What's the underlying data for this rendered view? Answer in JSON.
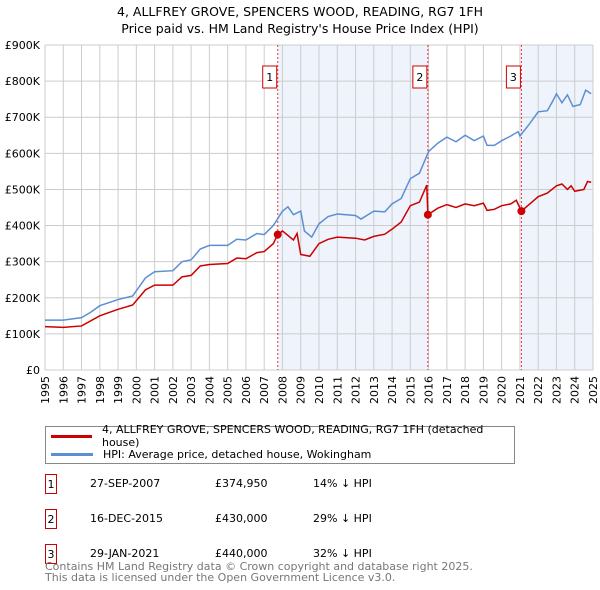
{
  "chart_data": {
    "type": "line",
    "title": "4, ALLFREY GROVE, SPENCERS WOOD, READING, RG7 1FH",
    "subtitle": "Price paid vs. HM Land Registry's House Price Index (HPI)",
    "xlim": [
      1995,
      2025
    ],
    "ylim": [
      0,
      900000
    ],
    "yticks": [
      0,
      100000,
      200000,
      300000,
      400000,
      500000,
      600000,
      700000,
      800000,
      900000
    ],
    "ytick_labels": [
      "£0",
      "£100K",
      "£200K",
      "£300K",
      "£400K",
      "£500K",
      "£600K",
      "£700K",
      "£800K",
      "£900K"
    ],
    "xticks": [
      1995,
      1996,
      1997,
      1998,
      1999,
      2000,
      2001,
      2002,
      2003,
      2004,
      2005,
      2006,
      2007,
      2008,
      2009,
      2010,
      2011,
      2012,
      2013,
      2014,
      2015,
      2016,
      2017,
      2018,
      2019,
      2020,
      2021,
      2022,
      2023,
      2024,
      2025
    ],
    "grid": true,
    "series": [
      {
        "name": "4, ALLFREY GROVE, SPENCERS WOOD, READING, RG7 1FH (detached house)",
        "color": "#cc0000",
        "x": [
          1995,
          1996,
          1997,
          1998,
          1999,
          1999.8,
          2000.5,
          2001,
          2002,
          2002.5,
          2003,
          2003.5,
          2004,
          2005,
          2005.5,
          2006,
          2006.6,
          2007,
          2007.5,
          2007.74,
          2008,
          2008.6,
          2008.8,
          2009,
          2009.5,
          2010,
          2010.5,
          2011,
          2012,
          2012.5,
          2013,
          2013.6,
          2014,
          2014.5,
          2015,
          2015.5,
          2015.9,
          2015.96,
          2016.5,
          2017,
          2017.5,
          2018,
          2018.5,
          2019,
          2019.2,
          2019.6,
          2020,
          2020.5,
          2020.8,
          2021.08,
          2021.5,
          2022,
          2022.5,
          2023,
          2023.3,
          2023.6,
          2023.8,
          2024,
          2024.5,
          2024.7,
          2024.9
        ],
        "y": [
          120000,
          118000,
          122000,
          150000,
          168000,
          180000,
          222000,
          235000,
          235000,
          258000,
          262000,
          288000,
          292000,
          295000,
          310000,
          308000,
          325000,
          328000,
          350000,
          374950,
          385000,
          360000,
          378000,
          320000,
          315000,
          350000,
          362000,
          368000,
          365000,
          360000,
          370000,
          376000,
          390000,
          410000,
          455000,
          465000,
          512000,
          430000,
          448000,
          458000,
          450000,
          460000,
          455000,
          462000,
          442000,
          445000,
          455000,
          460000,
          470000,
          440000,
          458000,
          480000,
          490000,
          510000,
          515000,
          500000,
          510000,
          495000,
          500000,
          522000,
          520000
        ]
      },
      {
        "name": "HPI: Average price, detached house, Wokingham",
        "color": "#5b8fd4",
        "x": [
          1995,
          1996,
          1997,
          1997.5,
          1998,
          1999,
          1999.8,
          2000.5,
          2001,
          2002,
          2002.5,
          2003,
          2003.5,
          2004,
          2005,
          2005.5,
          2006,
          2006.6,
          2007,
          2007.5,
          2008,
          2008.3,
          2008.6,
          2009,
          2009.2,
          2009.6,
          2010,
          2010.5,
          2011,
          2012,
          2012.3,
          2013,
          2013.6,
          2014,
          2014.5,
          2015,
          2015.5,
          2016,
          2016.5,
          2017,
          2017.5,
          2018,
          2018.5,
          2019,
          2019.2,
          2019.6,
          2020,
          2020.5,
          2020.9,
          2021,
          2021.5,
          2022,
          2022.5,
          2022.8,
          2023,
          2023.3,
          2023.6,
          2023.9,
          2024.3,
          2024.6,
          2024.9
        ],
        "y": [
          138000,
          138000,
          145000,
          160000,
          178000,
          195000,
          205000,
          255000,
          272000,
          275000,
          300000,
          305000,
          335000,
          345000,
          345000,
          362000,
          360000,
          378000,
          375000,
          400000,
          440000,
          452000,
          430000,
          440000,
          385000,
          368000,
          405000,
          425000,
          432000,
          428000,
          418000,
          440000,
          438000,
          460000,
          475000,
          530000,
          545000,
          605000,
          628000,
          645000,
          632000,
          650000,
          635000,
          648000,
          622000,
          622000,
          635000,
          648000,
          660000,
          648000,
          680000,
          715000,
          718000,
          745000,
          765000,
          740000,
          762000,
          730000,
          735000,
          775000,
          765000
        ]
      }
    ],
    "sales": [
      {
        "label": "1",
        "date": "27-SEP-2007",
        "x": 2007.74,
        "price": "£374,950",
        "value": 374950,
        "hpi": "14% ↓ HPI"
      },
      {
        "label": "2",
        "date": "16-DEC-2015",
        "x": 2015.96,
        "price": "£430,000",
        "value": 430000,
        "hpi": "29% ↓ HPI"
      },
      {
        "label": "3",
        "date": "29-JAN-2021",
        "x": 2021.08,
        "price": "£440,000",
        "value": 440000,
        "hpi": "32% ↓ HPI"
      }
    ],
    "shaded_ranges": [
      [
        2007.74,
        2015.96
      ],
      [
        2021.08,
        2025
      ]
    ]
  },
  "footer": [
    "Contains HM Land Registry data © Crown copyright and database right 2025.",
    "This data is licensed under the Open Government Licence v3.0."
  ]
}
